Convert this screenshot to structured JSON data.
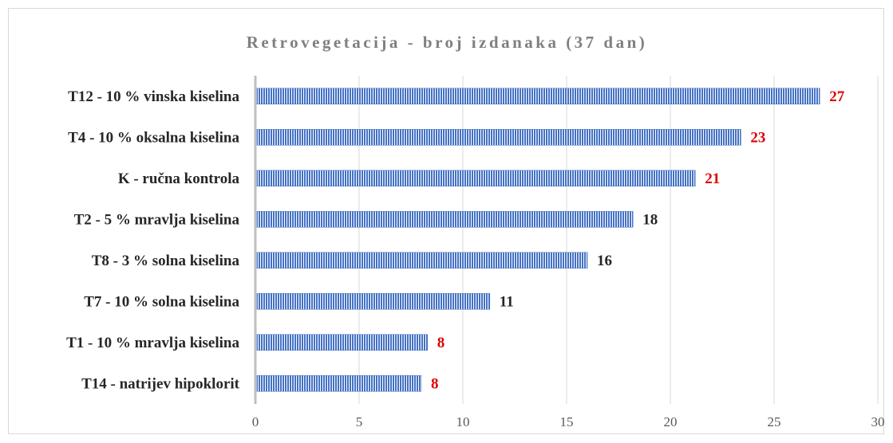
{
  "chart_data": {
    "type": "barh",
    "title": "Retrovegetacija - broj izdanaka (37 dan)",
    "categories": [
      "T12 - 10 % vinska kiselina",
      "T4 - 10 % oksalna kiselina",
      "K - ručna kontrola",
      "T2 - 5 % mravlja kiselina",
      "T8 - 3 % solna kiselina",
      "T7 - 10 % solna kiselina",
      "T1 - 10 % mravlja kiselina",
      "T14 - natrijev hipoklorit"
    ],
    "values": [
      27.2,
      23.4,
      21.2,
      18.2,
      16,
      11.3,
      8.3,
      8
    ],
    "value_labels": [
      "27",
      "23",
      "21",
      "18",
      "16",
      "11",
      "8",
      "8"
    ],
    "label_colors": [
      "#e00000",
      "#e00000",
      "#e00000",
      "#262626",
      "#262626",
      "#262626",
      "#e00000",
      "#e00000"
    ],
    "color": "#4472c4",
    "xlim": [
      0,
      30
    ],
    "xticks": [
      0,
      5,
      10,
      15,
      20,
      25,
      30
    ],
    "grid": true
  }
}
